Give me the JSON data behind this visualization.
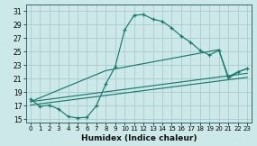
{
  "xlabel": "Humidex (Indice chaleur)",
  "bg_color": "#cce8e8",
  "grid_color": "#aacccc",
  "line_color": "#1a7a6e",
  "xlim": [
    -0.5,
    23.5
  ],
  "ylim": [
    14.5,
    32.0
  ],
  "xticks": [
    0,
    1,
    2,
    3,
    4,
    5,
    6,
    7,
    8,
    9,
    10,
    11,
    12,
    13,
    14,
    15,
    16,
    17,
    18,
    19,
    20,
    21,
    22,
    23
  ],
  "yticks": [
    15,
    17,
    19,
    21,
    23,
    25,
    27,
    29,
    31
  ],
  "main_x": [
    0,
    1,
    2,
    3,
    4,
    5,
    6,
    7,
    8,
    9,
    10,
    11,
    12,
    13,
    14,
    15,
    16,
    17,
    18,
    19,
    20,
    21,
    22,
    23
  ],
  "main_y": [
    18.0,
    16.9,
    17.1,
    16.5,
    15.4,
    15.2,
    15.3,
    17.0,
    20.2,
    22.8,
    28.2,
    30.4,
    30.5,
    29.8,
    29.5,
    28.5,
    27.3,
    26.4,
    25.2,
    24.5,
    25.2,
    21.3,
    22.0,
    22.5
  ],
  "trend1_x": [
    0,
    23
  ],
  "trend1_y": [
    17.6,
    21.8
  ],
  "trend2_x": [
    0,
    8,
    20,
    21,
    22,
    23
  ],
  "trend2_y": [
    17.6,
    22.2,
    25.3,
    21.0,
    22.0,
    22.5
  ],
  "trend3_x": [
    0,
    23
  ],
  "trend3_y": [
    17.1,
    21.2
  ]
}
